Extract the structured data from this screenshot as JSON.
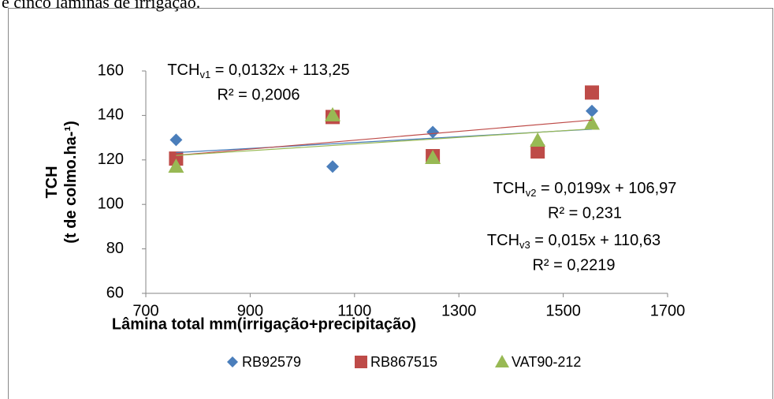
{
  "header_text": "e cinco lâminas de irrigação.",
  "chart_data": {
    "type": "scatter",
    "x_label": "Lâmina total mm(irrigação+precipitação)",
    "y_label": [
      "TCH",
      "(t de colmo.ha-¹)"
    ],
    "x": [
      758,
      1058,
      1250,
      1451,
      1555
    ],
    "xlim": [
      700,
      1700
    ],
    "xticks": [
      700,
      900,
      1100,
      1300,
      1500,
      1700
    ],
    "ylim": [
      60,
      160
    ],
    "yticks": [
      60,
      80,
      100,
      120,
      140,
      160
    ],
    "grid": false,
    "legend": "bottom",
    "series": [
      {
        "name": "RB92579",
        "color": "#4a7ebb",
        "marker": "diamond",
        "values": [
          129,
          117,
          132.5,
          null,
          142
        ],
        "trend": {
          "x": [
            758,
            1555
          ],
          "y": [
            123.3,
            133.8
          ]
        }
      },
      {
        "name": "RB867515",
        "color": "#be4b48",
        "marker": "square",
        "values": [
          120.6,
          139.3,
          121.7,
          123.8,
          150.3
        ],
        "trend": {
          "x": [
            758,
            1555
          ],
          "y": [
            122.05,
            137.9
          ]
        }
      },
      {
        "name": "VAT90-212",
        "color": "#98b954",
        "marker": "triangle",
        "values": [
          117.1,
          140.2,
          121,
          128.8,
          136.4
        ],
        "trend": {
          "x": [
            758,
            1555
          ],
          "y": [
            122,
            133.96
          ]
        }
      }
    ],
    "annotations": [
      {
        "prefix": "TCH",
        "sub": "v1",
        "text": " = 0,0132x + 113,25",
        "r2": "R² = 0,2006"
      },
      {
        "prefix": "TCH",
        "sub": "v2",
        "text": " = 0,0199x + 106,97",
        "r2": "R² = 0,231"
      },
      {
        "prefix": "TCH",
        "sub": "v3",
        "text": " = 0,015x + 110,63",
        "r2": "R² = 0,2219"
      }
    ]
  }
}
